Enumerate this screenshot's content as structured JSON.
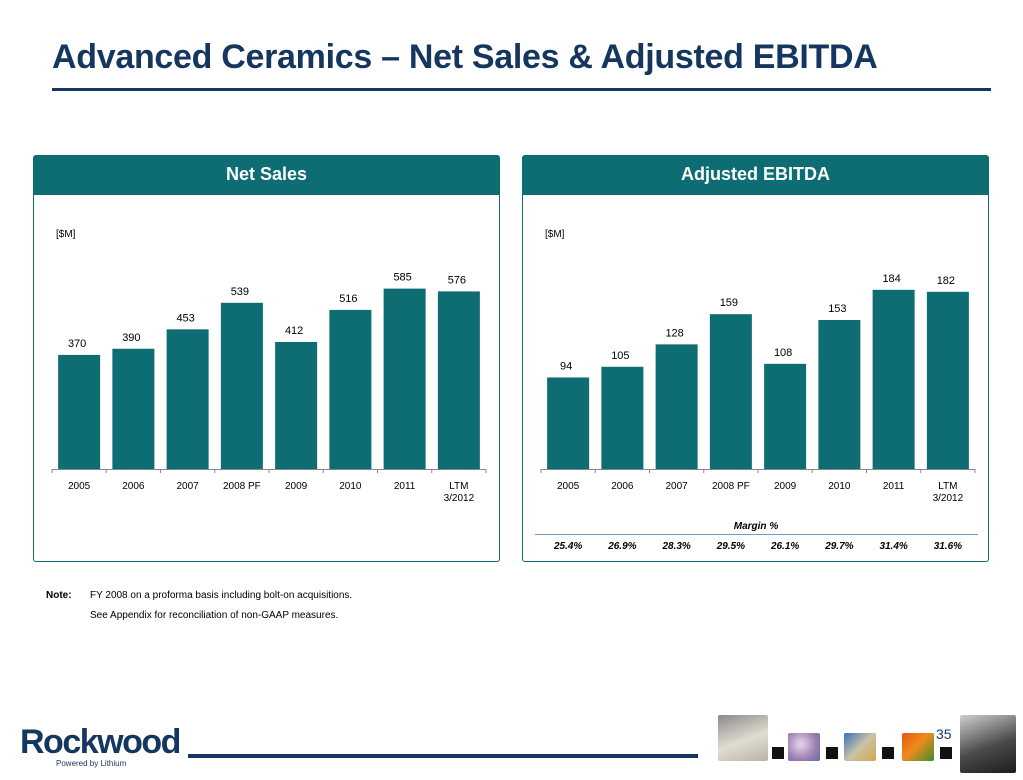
{
  "title": "Advanced Ceramics – Net Sales & Adjusted EBITDA",
  "panels": {
    "left": {
      "header": "Net Sales",
      "unit": "[$M]"
    },
    "right": {
      "header": "Adjusted EBITDA",
      "unit": "[$M]"
    }
  },
  "chart_data": [
    {
      "type": "bar",
      "title": "Net Sales",
      "ylabel": "[$M]",
      "categories": [
        "2005",
        "2006",
        "2007",
        "2008 PF",
        "2009",
        "2010",
        "2011",
        "LTM 3/2012"
      ],
      "category_lines": [
        [
          "2005"
        ],
        [
          "2006"
        ],
        [
          "2007"
        ],
        [
          "2008 PF"
        ],
        [
          "2009"
        ],
        [
          "2010"
        ],
        [
          "2011"
        ],
        [
          "LTM",
          "3/2012"
        ]
      ],
      "values": [
        370,
        390,
        453,
        539,
        412,
        516,
        585,
        576
      ],
      "ylim": [
        0,
        600
      ],
      "color": "#0d6d72",
      "grid": false
    },
    {
      "type": "bar",
      "title": "Adjusted EBITDA",
      "ylabel": "[$M]",
      "categories": [
        "2005",
        "2006",
        "2007",
        "2008 PF",
        "2009",
        "2010",
        "2011",
        "LTM 3/2012"
      ],
      "category_lines": [
        [
          "2005"
        ],
        [
          "2006"
        ],
        [
          "2007"
        ],
        [
          "2008 PF"
        ],
        [
          "2009"
        ],
        [
          "2010"
        ],
        [
          "2011"
        ],
        [
          "LTM",
          "3/2012"
        ]
      ],
      "values": [
        94,
        105,
        128,
        159,
        108,
        153,
        184,
        182
      ],
      "ylim": [
        0,
        190
      ],
      "color": "#0d6d72",
      "grid": false,
      "margin_label": "Margin %",
      "margins": [
        "25.4%",
        "26.9%",
        "28.3%",
        "29.5%",
        "26.1%",
        "29.7%",
        "31.4%",
        "31.6%"
      ]
    }
  ],
  "note": {
    "label": "Note:",
    "lines": [
      "FY 2008 on a proforma basis including bolt-on acquisitions.",
      "See Appendix for reconciliation of non-GAAP measures."
    ]
  },
  "footer": {
    "logo_text": "Rockwood",
    "logo_subtext": "Powered by Lithium",
    "page_number": "35"
  },
  "colors": {
    "navy": "#15365f",
    "teal": "#0d6d72"
  }
}
